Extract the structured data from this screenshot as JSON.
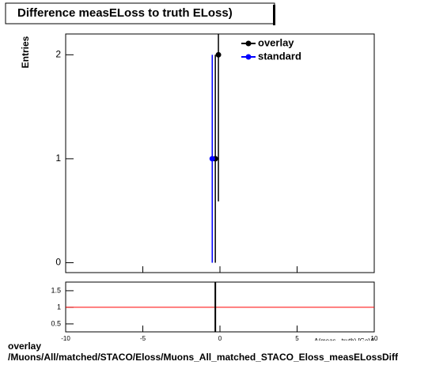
{
  "chart_data": [
    {
      "type": "scatter",
      "title": "Difference measELoss to truth ELoss)",
      "y_label": "Entries",
      "xlim": [
        -10,
        10
      ],
      "ylim": [
        -0.095,
        2.2
      ],
      "yticks": [
        0,
        1,
        2
      ],
      "xticks": [
        -10,
        -5,
        0,
        5,
        10
      ],
      "series": [
        {
          "name": "overlay",
          "color": "#000000",
          "x": [
            -0.3,
            -0.1
          ],
          "values": [
            1,
            2
          ],
          "errors": [
            1,
            1.41
          ]
        },
        {
          "name": "standard",
          "color": "#0000ff",
          "x": [
            -0.5
          ],
          "values": [
            1
          ],
          "errors": [
            1
          ]
        }
      ]
    },
    {
      "type": "ratio",
      "x_label": "Δ(meas - truth) [GeV]",
      "xlim": [
        -10,
        10
      ],
      "ylim": [
        0.26,
        1.76
      ],
      "yticks": [
        0.5,
        1,
        1.5
      ],
      "xticks": [
        -10,
        -5,
        0,
        5,
        10
      ],
      "reference": 1,
      "reference_color": "#ff0000",
      "series": [
        {
          "color": "#000000",
          "x": [
            -0.3
          ],
          "values": [
            1
          ],
          "errors": [
            1.5
          ]
        }
      ]
    }
  ],
  "footer": {
    "line1": "overlay",
    "line2": "/Muons/All/matched/STACO/Eloss/Muons_All_matched_STACO_Eloss_measELossDiff"
  }
}
